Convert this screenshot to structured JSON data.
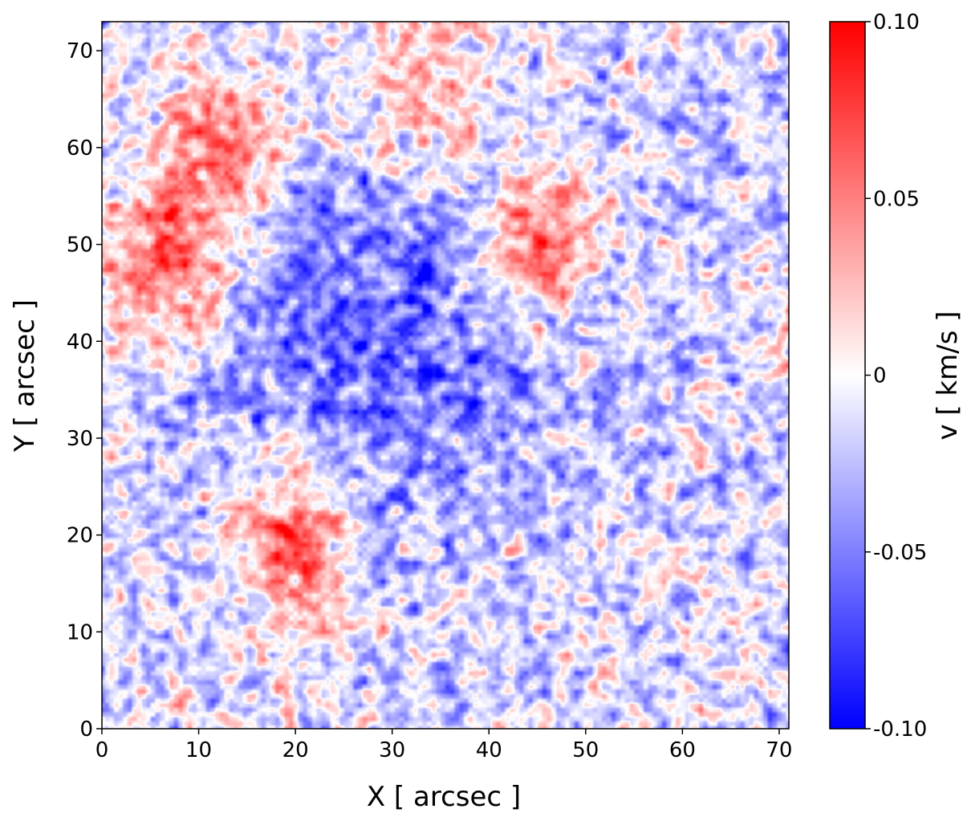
{
  "chart_data": {
    "type": "heatmap",
    "title": "",
    "xlabel": "X [ arcsec ]",
    "ylabel": "Y [ arcsec ]",
    "xlim": [
      0,
      71
    ],
    "ylim": [
      0,
      73
    ],
    "xticks": [
      0,
      10,
      20,
      30,
      40,
      50,
      60,
      70
    ],
    "yticks": [
      0,
      10,
      20,
      30,
      40,
      50,
      60,
      70
    ],
    "grid": false,
    "colorbar": {
      "label": "v [ km/s ]",
      "colormap": "bwr",
      "vmin": -0.1,
      "vmax": 0.1,
      "ticks": [
        0.1,
        0.05,
        0,
        -0.05,
        -0.1
      ],
      "tick_labels": [
        "0.10",
        "0.05",
        "0",
        "-0.05",
        "-0.10"
      ],
      "colors": {
        "low": "#0000ff",
        "mid": "#ffffff",
        "high": "#ff0000"
      }
    },
    "features": [
      {
        "name": "red patch left",
        "x": 7,
        "y": 48,
        "value": 0.1
      },
      {
        "name": "red patch upper-left",
        "x": 13,
        "y": 60,
        "value": 0.09
      },
      {
        "name": "red patch lower-center",
        "x": 20,
        "y": 19,
        "value": 0.1
      },
      {
        "name": "red patch upper-right",
        "x": 45,
        "y": 50,
        "value": 0.1
      },
      {
        "name": "red band top",
        "x": 33,
        "y": 66,
        "value": 0.07
      },
      {
        "name": "blue region center",
        "x": 30,
        "y": 42,
        "value": -0.06
      }
    ]
  }
}
